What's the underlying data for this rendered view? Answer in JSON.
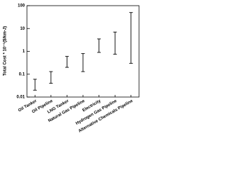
{
  "chart_data": {
    "type": "range",
    "y_label": "Total Cost * 10⁻⁵($/km-J)",
    "categories": [
      "Oil Tanker",
      "Oil Pipeline",
      "LNG Tanker",
      "Natural Gas Pipeline",
      "Electricity",
      "Hydrogen Gas Pipeline",
      "Alternative Chemicals Pipeline"
    ],
    "low": [
      0.02,
      0.04,
      0.2,
      0.13,
      0.9,
      0.75,
      0.3
    ],
    "high": [
      0.06,
      0.13,
      0.6,
      0.8,
      3.5,
      7,
      50
    ],
    "color": "#000000",
    "log_y": true,
    "ylim": [
      0.01,
      100
    ],
    "yticks": [
      0.01,
      0.1,
      1,
      10,
      100
    ]
  }
}
